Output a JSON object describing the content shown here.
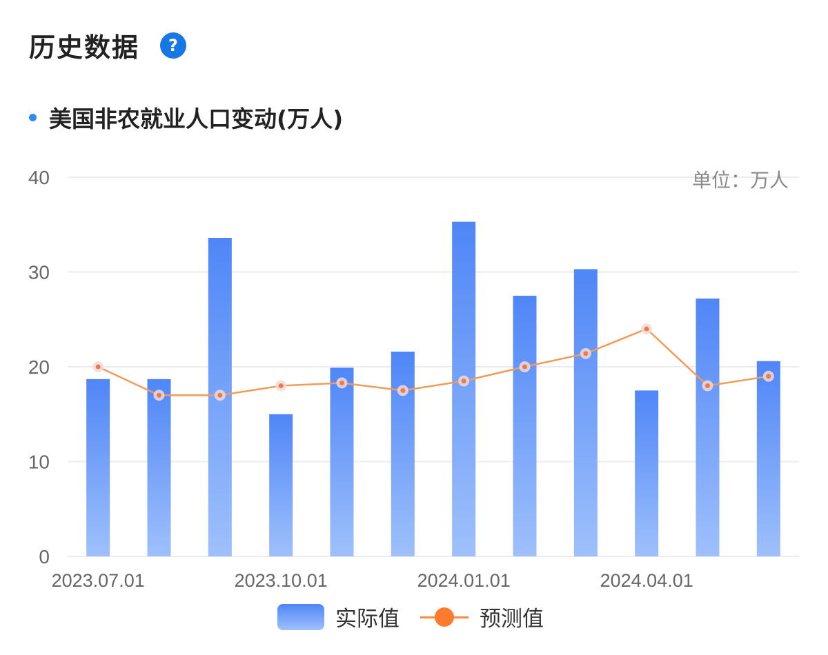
{
  "header": {
    "title": "历史数据",
    "help_icon": "question-mark-icon",
    "help_glyph": "?"
  },
  "chart_section": {
    "title": "美国非农就业人口变动(万人)"
  },
  "chart_data": {
    "type": "bar",
    "title": "美国非农就业人口变动(万人)",
    "unit_label": "单位：万人",
    "x_tick_labels": [
      "2023.07.01",
      "2023.10.01",
      "2024.01.01",
      "2024.04.01"
    ],
    "categories": [
      "2023.07",
      "2023.08",
      "2023.09",
      "2023.10",
      "2023.11",
      "2023.12",
      "2024.01",
      "2024.02",
      "2024.03",
      "2024.04",
      "2024.05",
      "2024.06"
    ],
    "y_ticks": [
      "0",
      "10",
      "20",
      "30",
      "40"
    ],
    "ylim": [
      0,
      40
    ],
    "grid": true,
    "legend_position": "bottom",
    "series": [
      {
        "name": "实际值",
        "type": "bar",
        "values": [
          18.7,
          18.7,
          33.6,
          15.0,
          19.9,
          21.6,
          35.3,
          27.5,
          30.3,
          17.5,
          27.2,
          20.6
        ]
      },
      {
        "name": "预测值",
        "type": "line",
        "values": [
          20.0,
          17.0,
          17.0,
          18.0,
          18.3,
          17.5,
          18.5,
          20.0,
          21.4,
          24.0,
          18.0,
          19.0
        ]
      }
    ],
    "colors": {
      "bar_top": "#4f86f7",
      "bar_bottom": "#9ec0fb",
      "line": "#f29b58",
      "marker": "#ec7a4a",
      "grid": "#ececec"
    }
  },
  "legend": {
    "items": [
      {
        "label": "实际值"
      },
      {
        "label": "预测值"
      }
    ]
  }
}
